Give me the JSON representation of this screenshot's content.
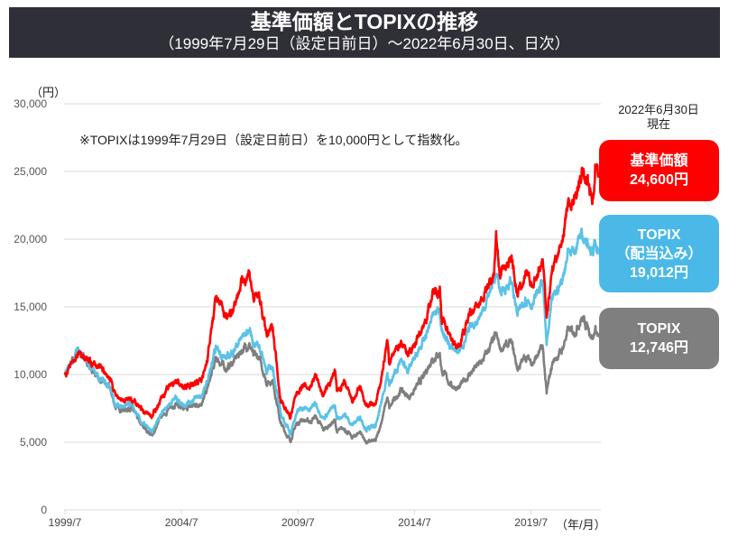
{
  "header": {
    "title": "基準価額とTOPIXの推移",
    "subtitle": "（1999年7月29日（設定日前日）～2022年6月30日、日次）"
  },
  "note": "※TOPIXは1999年7月29日（設定日前日）を10,000円として指数化。",
  "y_unit": "（円）",
  "x_unit": "（年/月）",
  "as_of": {
    "line1": "2022年6月30日",
    "line2": "現在"
  },
  "badges": [
    {
      "label": "基準価額",
      "value": "24,600円",
      "color": "#ff0000"
    },
    {
      "label1": "TOPIX",
      "label2": "（配当込み）",
      "value": "19,012円",
      "color": "#4ab9e8"
    },
    {
      "label": "TOPIX",
      "value": "12,746円",
      "color": "#7f7f7f"
    }
  ],
  "chart_data": {
    "type": "line",
    "ylim": [
      0,
      30000
    ],
    "yticks": [
      "0",
      "5,000",
      "10,000",
      "15,000",
      "20,000",
      "25,000",
      "30,000"
    ],
    "ytick_values": [
      0,
      5000,
      10000,
      15000,
      20000,
      25000,
      30000
    ],
    "xticks": [
      "1999/7",
      "2004/7",
      "2009/7",
      "2014/7",
      "2019/7"
    ],
    "xrange": [
      "1999-07",
      "2022-06"
    ],
    "grid": "horizontal",
    "x": [
      "1999-07",
      "1999-12",
      "2000-02",
      "2000-07",
      "2001-01",
      "2001-06",
      "2001-09",
      "2002-02",
      "2002-05",
      "2002-10",
      "2003-04",
      "2003-09",
      "2004-04",
      "2004-08",
      "2005-01",
      "2005-06",
      "2005-08",
      "2006-01",
      "2006-06",
      "2006-09",
      "2007-02",
      "2007-06",
      "2007-08",
      "2007-11",
      "2008-03",
      "2008-06",
      "2008-10",
      "2009-03",
      "2009-06",
      "2009-09",
      "2010-01",
      "2010-04",
      "2010-08",
      "2011-02",
      "2011-03",
      "2011-07",
      "2011-11",
      "2012-03",
      "2012-06",
      "2012-11",
      "2013-01",
      "2013-05",
      "2013-06",
      "2013-12",
      "2014-04",
      "2014-09",
      "2014-12",
      "2015-04",
      "2015-08",
      "2015-09",
      "2016-02",
      "2016-06",
      "2016-11",
      "2017-06",
      "2017-12",
      "2018-01",
      "2018-03",
      "2018-09",
      "2018-12",
      "2019-04",
      "2019-08",
      "2020-01",
      "2020-03",
      "2020-06",
      "2020-11",
      "2021-02",
      "2021-05",
      "2021-09",
      "2021-12",
      "2022-03",
      "2022-04",
      "2022-06"
    ],
    "series": [
      {
        "name": "TOPIX",
        "color": "#7f7f7f",
        "values": [
          10000,
          11200,
          11800,
          10800,
          9600,
          9000,
          7600,
          7400,
          7600,
          6300,
          5500,
          7000,
          7900,
          7400,
          7700,
          8000,
          8800,
          11200,
          10400,
          10800,
          11800,
          12300,
          11400,
          11200,
          9400,
          9600,
          6400,
          5100,
          6300,
          6700,
          6500,
          6900,
          5900,
          6600,
          5800,
          6000,
          5300,
          5800,
          5000,
          5100,
          6000,
          8300,
          7500,
          8900,
          8300,
          9300,
          9900,
          11200,
          11600,
          10300,
          9200,
          9000,
          10000,
          11000,
          12600,
          12900,
          11900,
          12300,
          10400,
          11300,
          10900,
          12000,
          8600,
          10900,
          11800,
          13300,
          13100,
          14200,
          13600,
          12700,
          13400,
          12746
        ]
      },
      {
        "name": "TOPIX（配当込み）",
        "color": "#5bc2e7",
        "values": [
          10000,
          11240,
          11860,
          10910,
          9740,
          9170,
          7770,
          7590,
          7820,
          6510,
          5710,
          7300,
          8290,
          7790,
          8140,
          8490,
          9350,
          11950,
          11150,
          11610,
          12730,
          13310,
          12360,
          12170,
          10270,
          10550,
          7090,
          5700,
          7070,
          7560,
          7380,
          7890,
          6790,
          7680,
          6760,
          7040,
          6260,
          6900,
          5980,
          6160,
          7270,
          10130,
          9170,
          11000,
          10330,
          11680,
          12500,
          14260,
          14860,
          13230,
          11910,
          11750,
          13170,
          14670,
          17000,
          17440,
          16140,
          16860,
          14330,
          15700,
          15240,
          16920,
          12180,
          15520,
          16940,
          19200,
          19020,
          20770,
          20010,
          18800,
          19870,
          19012
        ]
      },
      {
        "name": "基準価額",
        "color": "#ff0000",
        "values": [
          10000,
          11000,
          11500,
          11000,
          10500,
          9800,
          8500,
          8000,
          8300,
          7400,
          6900,
          8400,
          9600,
          9000,
          9300,
          9800,
          11000,
          15800,
          14200,
          14800,
          16800,
          17600,
          15600,
          15800,
          12800,
          13500,
          8200,
          6800,
          8500,
          9200,
          9000,
          10000,
          8400,
          10200,
          8800,
          9300,
          8000,
          9000,
          7700,
          7800,
          9000,
          12500,
          10800,
          12500,
          11500,
          12800,
          13800,
          15800,
          16500,
          14200,
          12500,
          12200,
          14300,
          15500,
          17600,
          20600,
          17200,
          18800,
          15800,
          17300,
          16500,
          18500,
          14200,
          18000,
          19800,
          22800,
          22600,
          24800,
          24200,
          23000,
          25500,
          24600
        ]
      }
    ]
  }
}
